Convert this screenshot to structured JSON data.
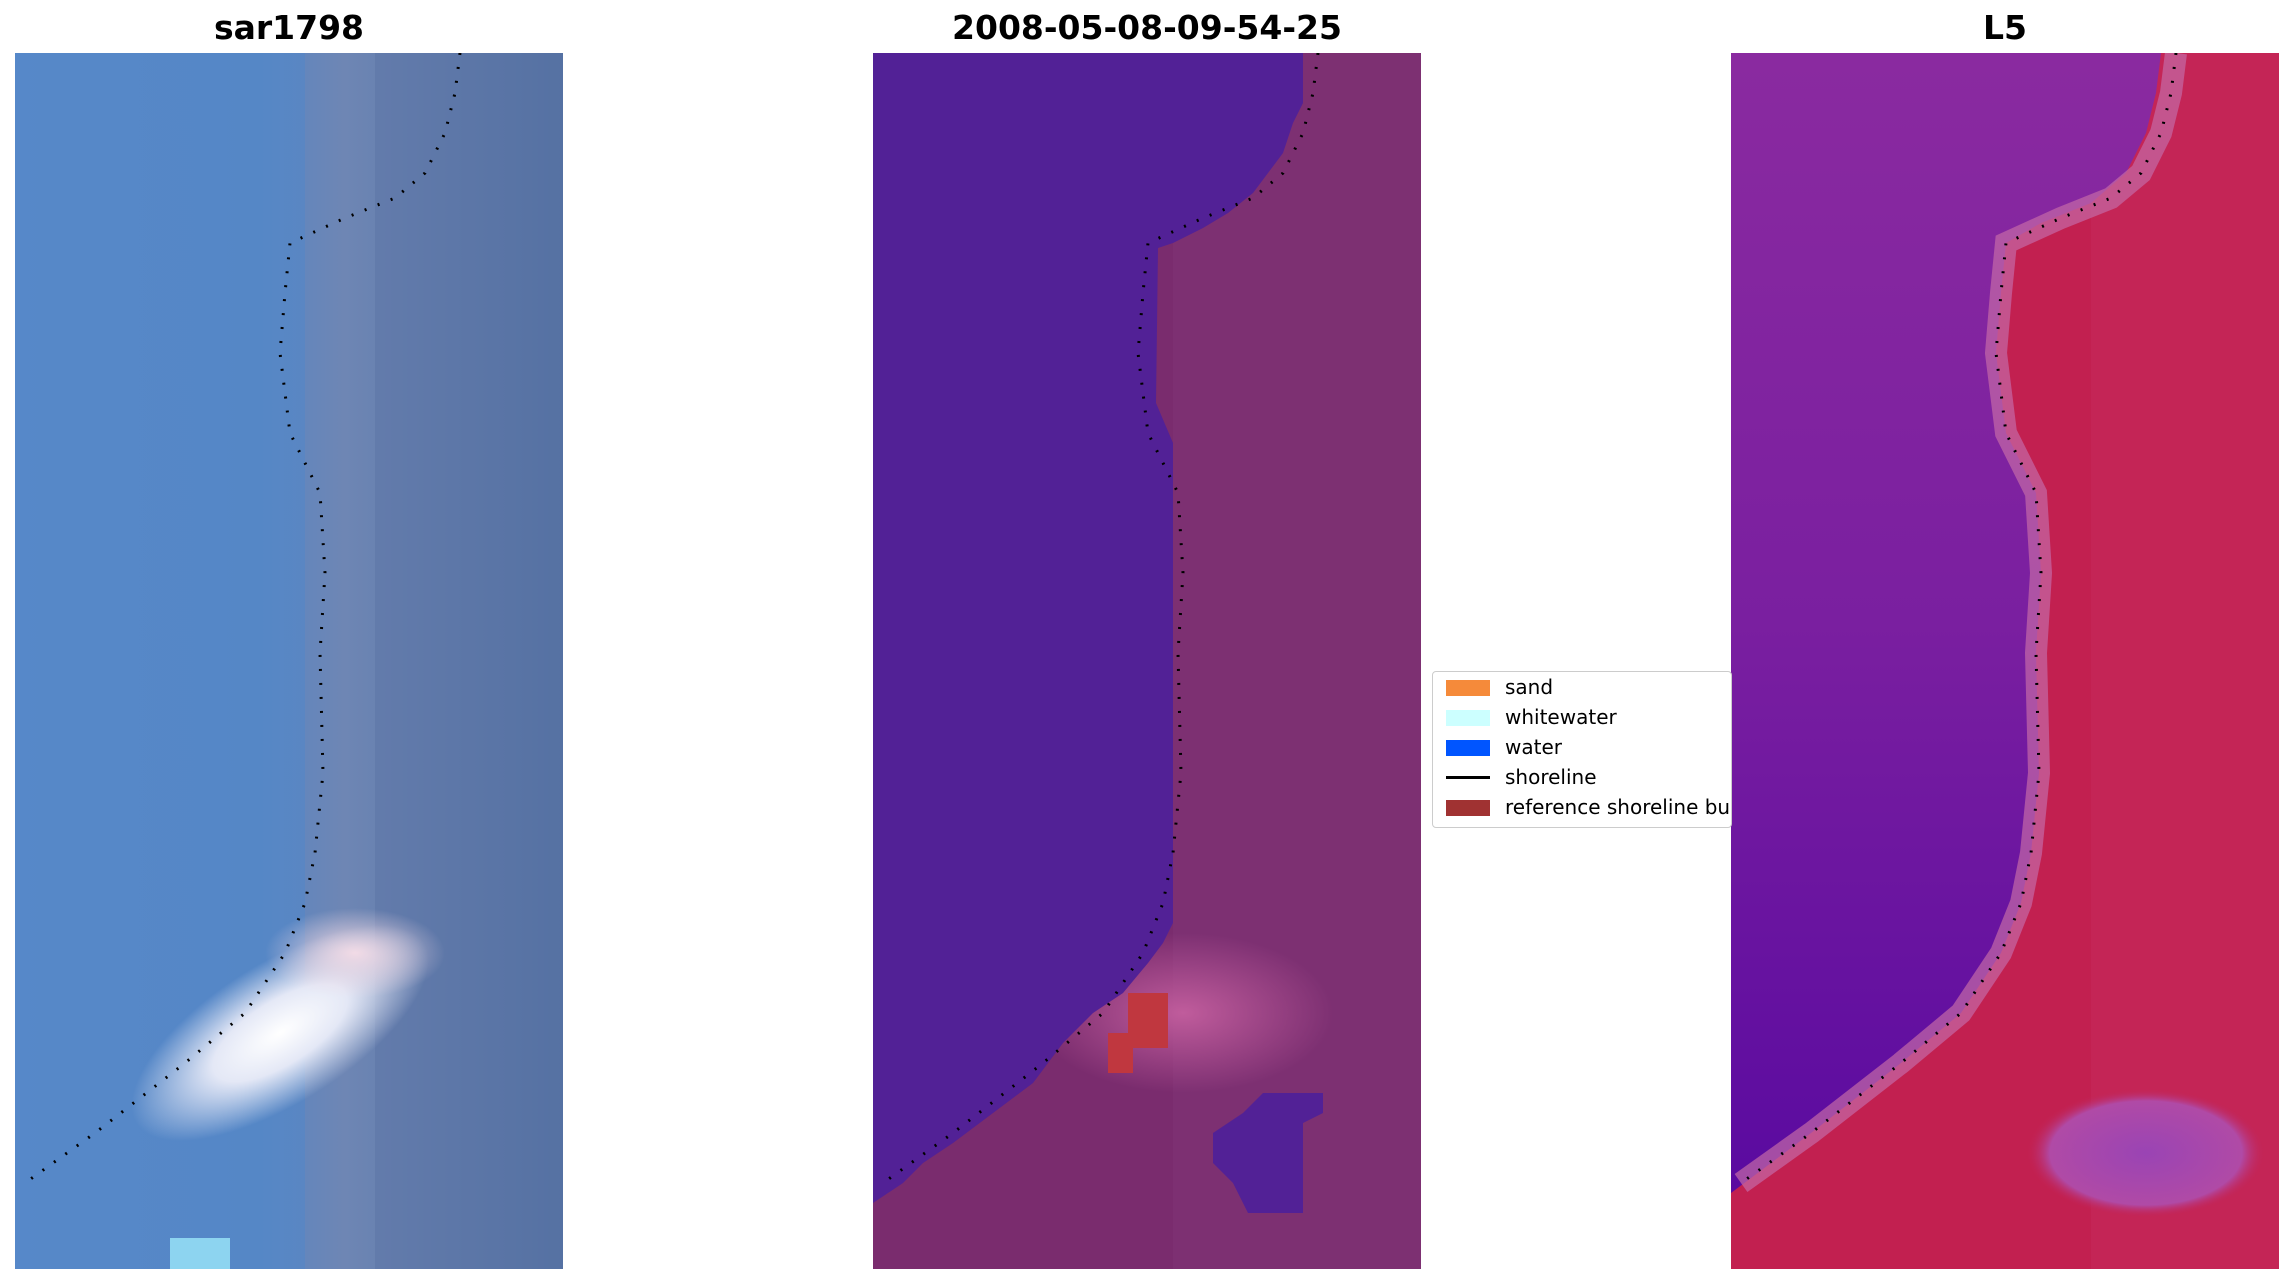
{
  "panels": [
    {
      "title": "sar1798"
    },
    {
      "title": "2008-05-08-09-54-25"
    },
    {
      "title": "L5"
    }
  ],
  "legend": {
    "items": [
      {
        "label": "sand",
        "color": "#f58a3a",
        "kind": "patch"
      },
      {
        "label": "whitewater",
        "color": "#ccffff",
        "kind": "patch"
      },
      {
        "label": "water",
        "color": "#0055ff",
        "kind": "patch"
      },
      {
        "label": "shoreline",
        "color": "#000000",
        "kind": "line"
      },
      {
        "label": "reference shoreline bu",
        "color": "#a03232",
        "kind": "patch"
      }
    ]
  },
  "colors": {
    "rgb_water": "#4d7fbf",
    "rgb_land": "#5a79a8",
    "rgb_whitewater": "#f2f4fa",
    "class_water": "#522196",
    "class_land": "#7a2c6e",
    "class_reference_buffer": "#c0373f",
    "index_water": "#7a1fa0",
    "index_land": "#c22050",
    "shoreline_dots": "#000000"
  }
}
